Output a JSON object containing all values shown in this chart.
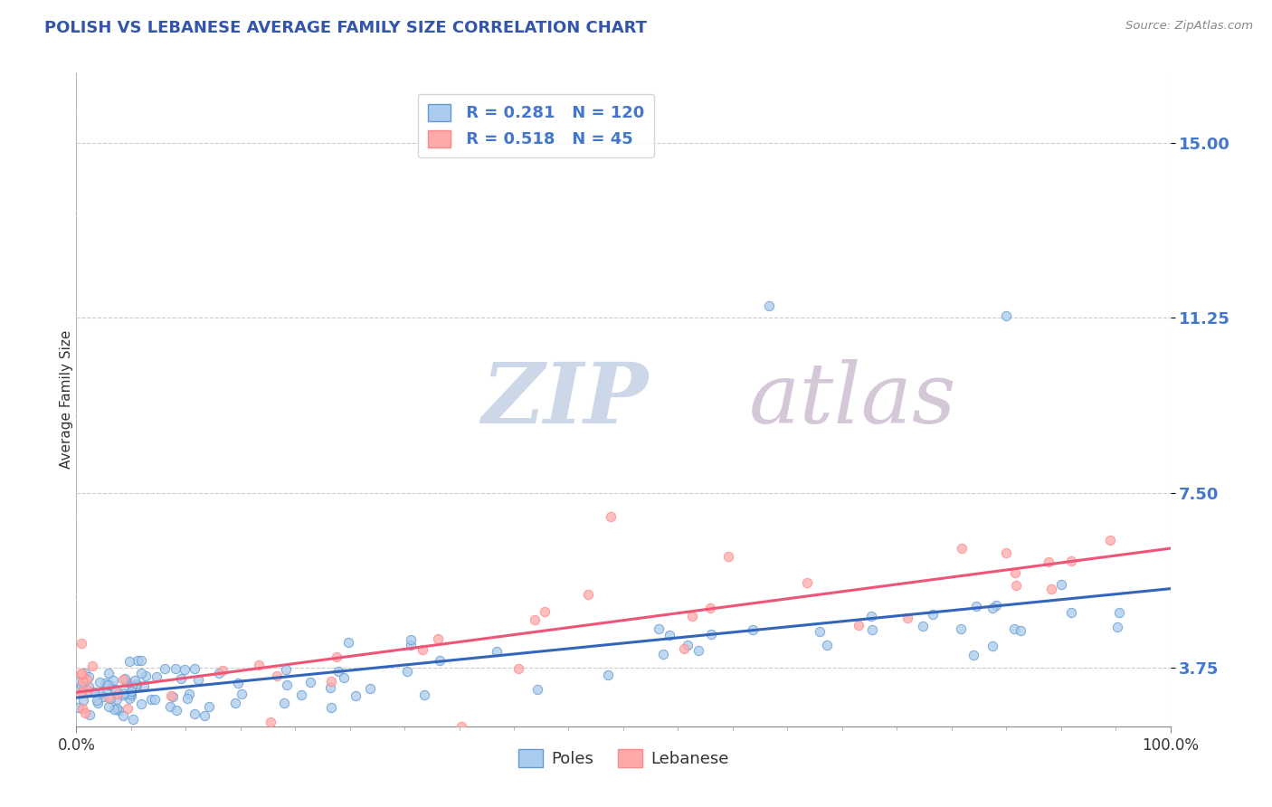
{
  "title": "POLISH VS LEBANESE AVERAGE FAMILY SIZE CORRELATION CHART",
  "source_text": "Source: ZipAtlas.com",
  "ylabel": "Average Family Size",
  "xlim": [
    0.0,
    100.0
  ],
  "ylim": [
    2.5,
    16.5
  ],
  "yticks": [
    3.75,
    7.5,
    11.25,
    15.0
  ],
  "title_color": "#3355aa",
  "axis_color": "#4477cc",
  "background_color": "#ffffff",
  "grid_color": "#cccccc",
  "poles_color": "#aaccee",
  "lebanese_color": "#ffaaaa",
  "poles_edge_color": "#6699cc",
  "lebanese_edge_color": "#ff8888",
  "trend_poles_color": "#3366bb",
  "trend_lebanese_color": "#ee5577",
  "legend_R_poles": "0.281",
  "legend_N_poles": "120",
  "legend_R_lebanese": "0.518",
  "legend_N_lebanese": "45",
  "watermark_ZIP_color": "#ccd8e8",
  "watermark_atlas_color": "#d4c8d8",
  "ytick_color": "#4477cc",
  "ytick_fontsize": 13
}
